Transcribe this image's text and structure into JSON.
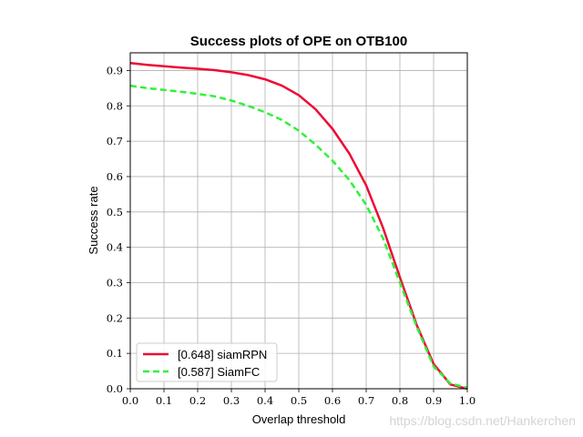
{
  "chart_data": {
    "type": "line",
    "title": "Success plots of OPE on OTB100",
    "xlabel": "Overlap threshold",
    "ylabel": "Success rate",
    "xlim": [
      0,
      1
    ],
    "ylim": [
      0,
      0.95
    ],
    "x_ticks": [
      "0.0",
      "0.1",
      "0.2",
      "0.3",
      "0.4",
      "0.5",
      "0.6",
      "0.7",
      "0.8",
      "0.9",
      "1.0"
    ],
    "y_ticks": [
      "0.0",
      "0.1",
      "0.2",
      "0.3",
      "0.4",
      "0.5",
      "0.6",
      "0.7",
      "0.8",
      "0.9"
    ],
    "grid": true,
    "legend_position": "lower-left",
    "x": [
      0.0,
      0.05,
      0.1,
      0.15,
      0.2,
      0.25,
      0.3,
      0.35,
      0.4,
      0.45,
      0.5,
      0.55,
      0.6,
      0.65,
      0.7,
      0.75,
      0.8,
      0.85,
      0.9,
      0.95,
      1.0
    ],
    "series": [
      {
        "name": "[0.648] siamRPN",
        "color": "#ee0a35",
        "dash": "solid",
        "values": [
          0.921,
          0.916,
          0.912,
          0.908,
          0.905,
          0.901,
          0.895,
          0.887,
          0.875,
          0.857,
          0.83,
          0.79,
          0.735,
          0.665,
          0.575,
          0.455,
          0.315,
          0.18,
          0.07,
          0.012,
          0.0
        ]
      },
      {
        "name": "[0.587] SiamFC",
        "color": "#2ef23a",
        "dash": "dashed",
        "values": [
          0.857,
          0.85,
          0.845,
          0.84,
          0.834,
          0.827,
          0.815,
          0.8,
          0.782,
          0.76,
          0.73,
          0.69,
          0.645,
          0.59,
          0.52,
          0.425,
          0.3,
          0.175,
          0.063,
          0.015,
          0.003
        ]
      }
    ]
  },
  "watermark": "https://blog.csdn.net/Hankerchen"
}
